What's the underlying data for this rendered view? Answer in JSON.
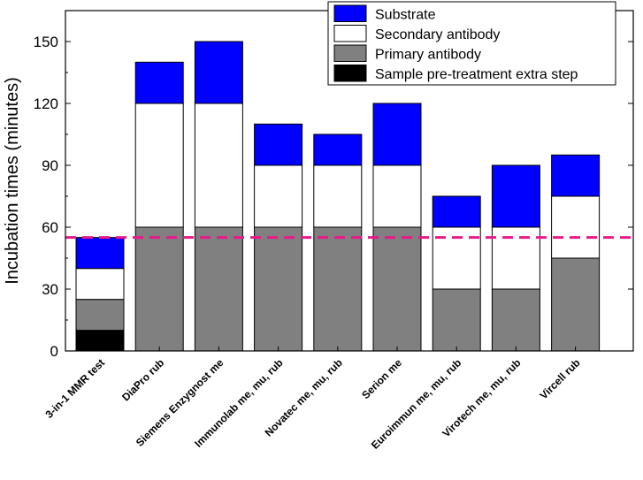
{
  "chart_data": {
    "type": "bar",
    "stacked": true,
    "categories": [
      "3-in-1 MMR test",
      "DiaPro rub",
      "Siemens Enzygnost me",
      "Immunolab me, mu, rub",
      "Novatec me, mu, rub",
      "Serion me",
      "Euroimmun me, mu, rub",
      "Virotech me, mu, rub",
      "Vircell rub"
    ],
    "series": [
      {
        "name": "Sample pre-treatment extra step",
        "color": "#000000",
        "values": [
          10,
          0,
          0,
          0,
          0,
          0,
          0,
          0,
          0
        ]
      },
      {
        "name": "Primary antibody",
        "color": "#808080",
        "values": [
          15,
          60,
          60,
          60,
          60,
          60,
          30,
          30,
          45
        ]
      },
      {
        "name": "Secondary antibody",
        "color": "#ffffff",
        "values": [
          15,
          60,
          60,
          30,
          30,
          30,
          30,
          30,
          30
        ]
      },
      {
        "name": "Substrate",
        "color": "#0000ff",
        "values": [
          15,
          20,
          30,
          20,
          15,
          30,
          15,
          30,
          20
        ]
      }
    ],
    "legend_order": [
      "Substrate",
      "Secondary antibody",
      "Primary antibody",
      "Sample pre-treatment extra step"
    ],
    "legend_position": "top-right",
    "ylabel": "Incubation times (minutes)",
    "xlabel": "",
    "ylim": [
      0,
      165
    ],
    "yticks": [
      0,
      30,
      60,
      90,
      120,
      150
    ],
    "reference_line": {
      "y": 55,
      "color": "#e8198b",
      "style": "dashed"
    },
    "grid": false
  }
}
